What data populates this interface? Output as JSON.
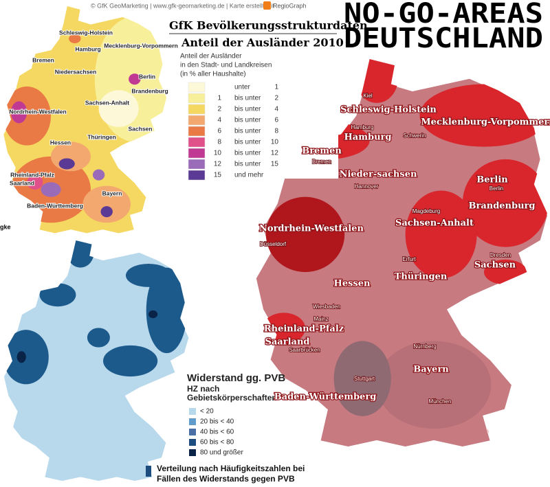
{
  "header": {
    "credit": "© GfK GeoMarketing  |  www.gfk-geomarketing.de  |  Karte erstellt mit",
    "credit_logo": "RegioGraph",
    "title_line1": "NO-GO-AREAS",
    "title_line2": "DEUTSCHLAND"
  },
  "map_gfk": {
    "title": "GfK Bevölkerungsstrukturdaten",
    "subtitle": "Anteil der Ausländer 2010",
    "legend_title": [
      "Anteil der Ausländer",
      "in den Stadt- und Landkreisen",
      "(in % aller Haushalte)"
    ],
    "legend": [
      {
        "op": "unter",
        "to": 1,
        "color": "#fdf8d8"
      },
      {
        "from": 1,
        "op": "bis unter",
        "to": 2,
        "color": "#f8ef9a"
      },
      {
        "from": 2,
        "op": "bis unter",
        "to": 4,
        "color": "#f4d862"
      },
      {
        "from": 4,
        "op": "bis unter",
        "to": 6,
        "color": "#f2a86e"
      },
      {
        "from": 6,
        "op": "bis unter",
        "to": 8,
        "color": "#ea7a45"
      },
      {
        "from": 8,
        "op": "bis unter",
        "to": 10,
        "color": "#e0508a"
      },
      {
        "from": 10,
        "op": "bis unter",
        "to": 12,
        "color": "#c03a94"
      },
      {
        "from": 12,
        "op": "bis unter",
        "to": 15,
        "color": "#9a6bb8"
      },
      {
        "from": 15,
        "op": "und mehr",
        "color": "#5b3a96"
      }
    ],
    "labels": [
      "Schleswig-Holstein",
      "Hamburg",
      "Mecklenburg-Vorpommern",
      "Bremen",
      "Niedersachsen",
      "Berlin",
      "Brandenburg",
      "Sachsen-Anhalt",
      "Nordrhein-Westfalen",
      "Sachsen",
      "Hessen",
      "Thüringen",
      "Rheinland-Pfalz",
      "Saarland",
      "Bayern",
      "Baden-Württemberg"
    ],
    "fragment": "gke"
  },
  "map_pvb": {
    "legend_title": "Widerstand gg. PVB",
    "legend_subtitle": [
      "HZ nach",
      "Gebietskörperschaften"
    ],
    "legend": [
      {
        "label": "< 20",
        "color": "#b8d8ec"
      },
      {
        "label": "20 bis < 40",
        "color": "#5f9ccb"
      },
      {
        "label": "40 bis < 60",
        "color": "#4a6fa5"
      },
      {
        "label": "60 bis < 80",
        "color": "#1d4d7e"
      },
      {
        "label": "80 und größer",
        "color": "#0a2447"
      }
    ],
    "caption": [
      "Verteilung nach Häufigkeitszahlen bei",
      "Fällen des Widerstands gegen PVB"
    ]
  },
  "map_red": {
    "labels": [
      "Kiel",
      "Schleswig-Holstein",
      "Hamburg",
      "Hamburg",
      "Mecklenburg-Vorpommern",
      "Schwerin",
      "Bremen",
      "Bremen",
      "Nieder-sachsen",
      "Hannover",
      "Berlin",
      "Berlin",
      "Brandenburg",
      "Magdeburg",
      "Sachsen-Anhalt",
      "Nordrhein-Westfalen",
      "Düsseldorf",
      "Dresden",
      "Sachsen",
      "Erfurt",
      "Thüringen",
      "Hessen",
      "Wiesbaden",
      "Mainz",
      "Rheinland-Pfalz",
      "Saarland",
      "Saarbrücken",
      "Nürnberg",
      "Bayern",
      "Stuttgart",
      "Baden-Württemberg",
      "München"
    ]
  }
}
